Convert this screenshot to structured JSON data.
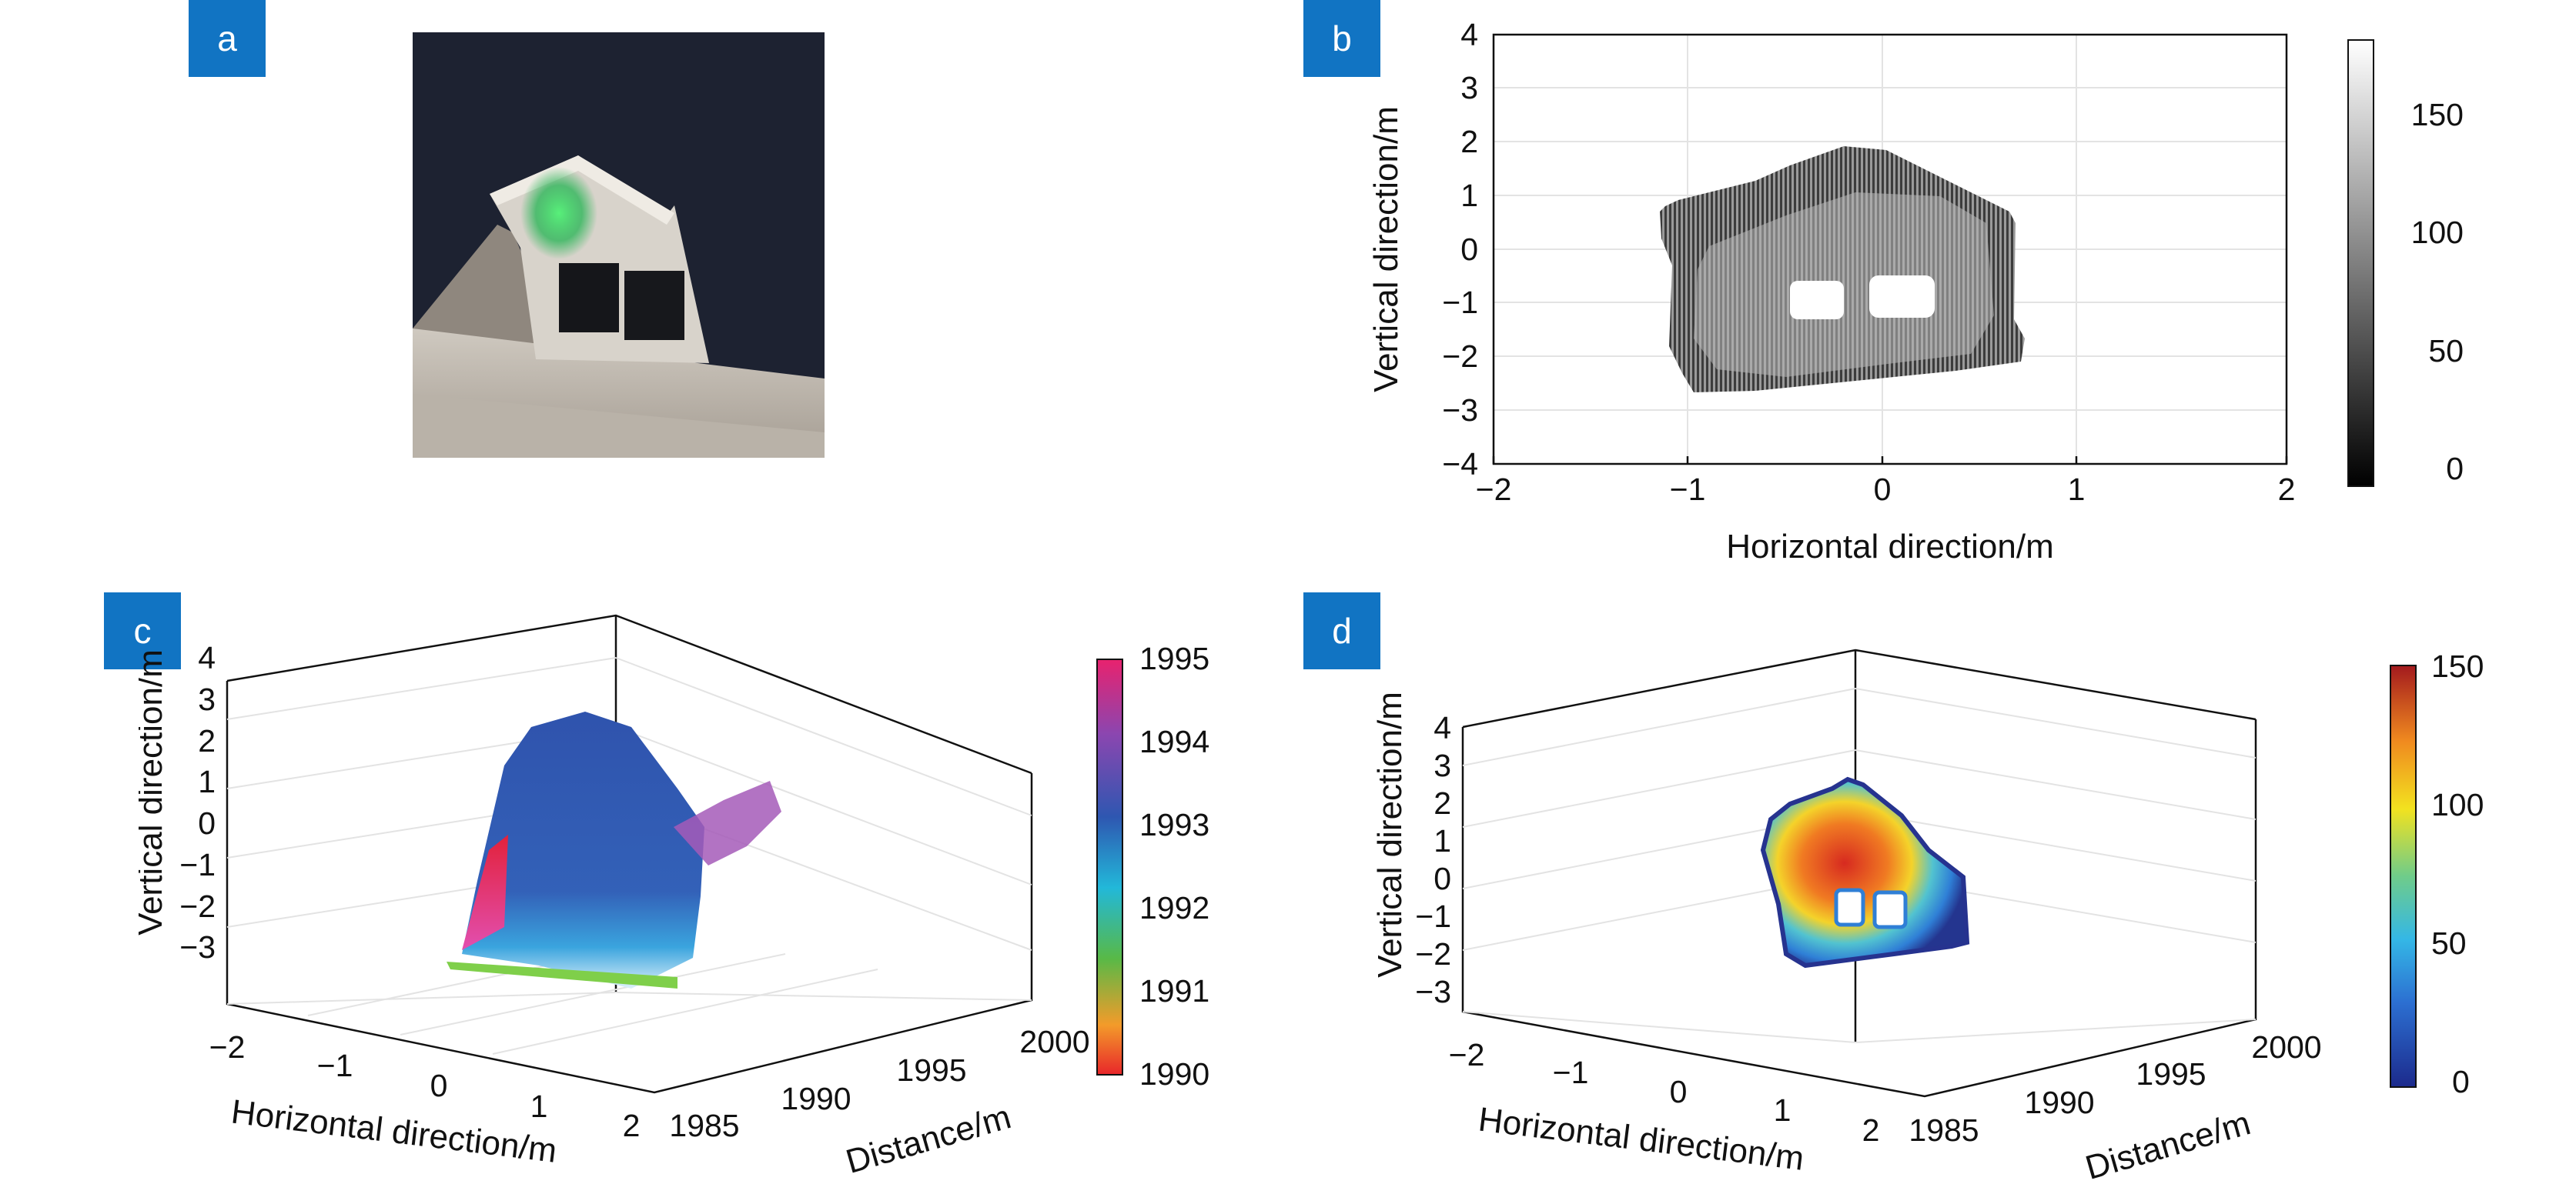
{
  "panels": {
    "a": {
      "tag": "a"
    },
    "b": {
      "tag": "b",
      "xlabel": "Horizontal direction/m",
      "ylabel": "Vertical direction/m",
      "xticks": [
        "−2",
        "−1",
        "0",
        "1",
        "2"
      ],
      "yticks": [
        "4",
        "3",
        "2",
        "1",
        "0",
        "−1",
        "−2",
        "−3",
        "−4"
      ],
      "colorbar_ticks": [
        "150",
        "100",
        "50",
        "0"
      ]
    },
    "c": {
      "tag": "c",
      "xlabel": "Horizontal direction/m",
      "ylabel": "Vertical direction/m",
      "zlabel": "Distance/m",
      "xticks": [
        "−2",
        "−1",
        "0",
        "1",
        "2"
      ],
      "yticks": [
        "4",
        "3",
        "2",
        "1",
        "0",
        "−1",
        "−2",
        "−3"
      ],
      "zticks": [
        "1985",
        "1990",
        "1995",
        "2000"
      ],
      "colorbar_ticks": [
        "1995",
        "1994",
        "1993",
        "1992",
        "1991",
        "1990"
      ]
    },
    "d": {
      "tag": "d",
      "xlabel": "Horizontal direction/m",
      "ylabel": "Vertical direction/m",
      "zlabel": "Distance/m",
      "xticks": [
        "−2",
        "−1",
        "0",
        "1",
        "2"
      ],
      "yticks": [
        "4",
        "3",
        "2",
        "1",
        "0",
        "−1",
        "−2",
        "−3"
      ],
      "zticks": [
        "1985",
        "1990",
        "1995",
        "2000"
      ],
      "colorbar_ticks": [
        "150",
        "100",
        "50",
        "0"
      ]
    }
  },
  "chart_data": [
    {
      "panel": "b",
      "type": "heatmap",
      "xlabel": "Horizontal direction/m",
      "ylabel": "Vertical direction/m",
      "xlim": [
        -2,
        2
      ],
      "ylim": [
        -4,
        4
      ],
      "colorbar": {
        "colormap": "gray",
        "range": [
          0,
          180
        ],
        "ticks": [
          0,
          50,
          100,
          150
        ]
      },
      "grid": true
    },
    {
      "panel": "c",
      "type": "scatter",
      "xlabel": "Horizontal direction/m",
      "ylabel": "Vertical direction/m",
      "zlabel": "Distance/m",
      "xlim": [
        -2,
        2
      ],
      "ylim": [
        -3,
        4
      ],
      "zlim": [
        1985,
        2000
      ],
      "colorbar": {
        "colormap": "hsv-like",
        "range": [
          1990,
          1995
        ],
        "ticks": [
          1990,
          1991,
          1992,
          1993,
          1994,
          1995
        ]
      },
      "grid": true
    },
    {
      "panel": "d",
      "type": "scatter",
      "xlabel": "Horizontal direction/m",
      "ylabel": "Vertical direction/m",
      "zlabel": "Distance/m",
      "xlim": [
        -2,
        2
      ],
      "ylim": [
        -3,
        4
      ],
      "zlim": [
        1985,
        2000
      ],
      "colorbar": {
        "colormap": "jet",
        "range": [
          0,
          150
        ],
        "ticks": [
          0,
          50,
          100,
          150
        ]
      },
      "grid": true
    }
  ],
  "colors": {
    "tag_blue": "#1174c3"
  }
}
